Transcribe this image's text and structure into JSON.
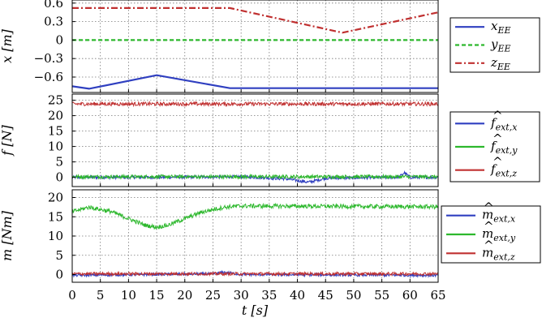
{
  "chart_data": [
    {
      "type": "line",
      "ylabel": "x [m]",
      "ylim": [
        -0.85,
        0.65
      ],
      "yticks": [
        0.6,
        0.3,
        0,
        -0.3,
        -0.6
      ],
      "ytick_labels": [
        "0.6",
        "0.3",
        "0",
        "−0.3",
        "−0.6"
      ],
      "xlim": [
        0,
        65
      ],
      "grid": true,
      "legend_position": "right",
      "series": [
        {
          "name": "x_EE",
          "legend_label": "x",
          "legend_sub": "EE",
          "color": "#2f3fc0",
          "style": "solid",
          "x": [
            0,
            3,
            15,
            28,
            65
          ],
          "y": [
            -0.75,
            -0.79,
            -0.57,
            -0.78,
            -0.78
          ]
        },
        {
          "name": "y_EE",
          "legend_label": "y",
          "legend_sub": "EE",
          "color": "#2db82d",
          "style": "dashed",
          "x": [
            0,
            65
          ],
          "y": [
            0.0,
            0.0
          ]
        },
        {
          "name": "z_EE",
          "legend_label": "z",
          "legend_sub": "EE",
          "color": "#c03030",
          "style": "dashdot",
          "x": [
            0,
            28,
            48,
            65
          ],
          "y": [
            0.52,
            0.52,
            0.12,
            0.45
          ]
        }
      ]
    },
    {
      "type": "line",
      "ylabel": "f [N]",
      "ylim": [
        -3,
        27
      ],
      "yticks": [
        25,
        20,
        15,
        10,
        5,
        0
      ],
      "ytick_labels": [
        "25",
        "20",
        "15",
        "10",
        "5",
        "0"
      ],
      "xlim": [
        0,
        65
      ],
      "grid": true,
      "legend_position": "right",
      "series": [
        {
          "name": "f_ext,x",
          "legend_label": "f",
          "legend_sub": "ext,x",
          "hat": true,
          "color": "#2f3fc0",
          "style": "solid",
          "x": [
            0,
            15,
            30,
            38,
            42,
            45,
            58,
            59,
            60,
            65
          ],
          "y": [
            0,
            0,
            0.2,
            -0.5,
            -1.6,
            -0.3,
            0,
            1.5,
            0,
            0
          ],
          "noise": 0.5
        },
        {
          "name": "f_ext,y",
          "legend_label": "f",
          "legend_sub": "ext,y",
          "hat": true,
          "color": "#2db82d",
          "style": "solid",
          "x": [
            0,
            65
          ],
          "y": [
            0.2,
            0.2
          ],
          "noise": 0.6
        },
        {
          "name": "f_ext,z",
          "legend_label": "f",
          "legend_sub": "ext,z",
          "hat": true,
          "color": "#c03030",
          "style": "solid",
          "x": [
            0,
            65
          ],
          "y": [
            23.8,
            23.8
          ],
          "noise": 0.6
        }
      ]
    },
    {
      "type": "line",
      "ylabel": "m [Nm]",
      "ylim": [
        -2,
        22
      ],
      "yticks": [
        20,
        15,
        10,
        5,
        0
      ],
      "ytick_labels": [
        "20",
        "15",
        "10",
        "5",
        "0"
      ],
      "xlim": [
        0,
        65
      ],
      "xticks": [
        0,
        5,
        10,
        15,
        20,
        25,
        30,
        35,
        40,
        45,
        50,
        55,
        60,
        65
      ],
      "xtick_labels": [
        "0",
        "5",
        "10",
        "15",
        "20",
        "25",
        "30",
        "35",
        "40",
        "45",
        "50",
        "55",
        "60",
        "65"
      ],
      "xlabel": "t [s]",
      "grid": true,
      "legend_position": "right",
      "series": [
        {
          "name": "m_ext,x",
          "legend_label": "m",
          "legend_sub": "ext,x",
          "hat": true,
          "color": "#2f3fc0",
          "style": "solid",
          "x": [
            0,
            25,
            27,
            30,
            65
          ],
          "y": [
            -0.2,
            0.2,
            0.6,
            0,
            -0.2
          ],
          "noise": 0.35
        },
        {
          "name": "m_ext,y",
          "legend_label": "m",
          "legend_sub": "ext,y",
          "hat": true,
          "color": "#2db82d",
          "style": "solid",
          "x": [
            0,
            3,
            7,
            10,
            13,
            15,
            17,
            20,
            23,
            27,
            30,
            65
          ],
          "y": [
            16.3,
            17.5,
            16.3,
            14.5,
            12.8,
            12.3,
            12.8,
            14.5,
            16.2,
            17.5,
            17.8,
            17.6
          ],
          "noise": 0.55
        },
        {
          "name": "m_ext,z",
          "legend_label": "m",
          "legend_sub": "ext,z",
          "hat": true,
          "color": "#c03030",
          "style": "solid",
          "x": [
            0,
            65
          ],
          "y": [
            0.2,
            0.2
          ],
          "noise": 0.4
        }
      ]
    }
  ]
}
